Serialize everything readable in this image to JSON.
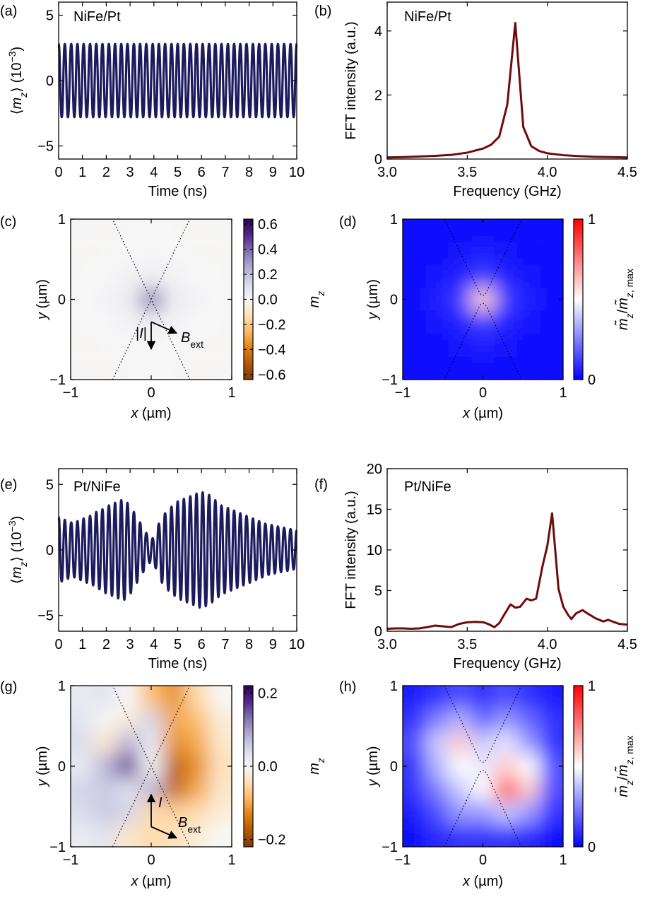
{
  "chart_data": [
    {
      "type": "line",
      "panel_label": "(a)",
      "annotation": "NiFe/Pt",
      "x": [
        0.0,
        0.13,
        0.26,
        0.39,
        0.53,
        0.66,
        0.79,
        0.92,
        1.05,
        1.18,
        1.32,
        1.45,
        1.58,
        1.71,
        1.84,
        1.97,
        2.11,
        2.24,
        2.37,
        2.5,
        2.63,
        2.76,
        2.89,
        3.03,
        3.16,
        3.29,
        3.42,
        3.55,
        3.68,
        3.82,
        3.95,
        4.08,
        4.21,
        4.34,
        4.47,
        4.61,
        4.74,
        4.87,
        5.0,
        5.13,
        5.26,
        5.39,
        5.53,
        5.66,
        5.79,
        5.92,
        6.05,
        6.18,
        6.32,
        6.45,
        6.58,
        6.71,
        6.84,
        6.97,
        7.11,
        7.24,
        7.37,
        7.5,
        7.63,
        7.76,
        7.89,
        8.03,
        8.16,
        8.29,
        8.42,
        8.55,
        8.68,
        8.82,
        8.95,
        9.08,
        9.21,
        9.34,
        9.47,
        9.61,
        9.74,
        9.87,
        10.0
      ],
      "series": [
        {
          "color": "#1b1b5e",
          "values": [
            2.8,
            -2.8,
            2.8,
            -2.8,
            2.8,
            -2.8,
            2.8,
            -2.8,
            2.8,
            -2.8,
            2.8,
            -2.8,
            2.8,
            -2.8,
            2.8,
            -2.8,
            2.8,
            -2.8,
            2.8,
            -2.8,
            2.8,
            -2.8,
            2.8,
            -2.8,
            2.8,
            -2.8,
            2.8,
            -2.8,
            2.8,
            -2.8,
            2.8,
            -2.8,
            2.8,
            -2.8,
            2.8,
            -2.8,
            2.8,
            -2.8,
            2.8,
            -2.8,
            2.8,
            -2.8,
            2.8,
            -2.8,
            2.8,
            -2.8,
            2.8,
            -2.8,
            2.8,
            -2.8,
            2.8,
            -2.8,
            2.8,
            -2.8,
            2.8,
            -2.8,
            2.8,
            -2.8,
            2.8,
            -2.8,
            2.8,
            -2.8,
            2.8,
            -2.8,
            2.8,
            -2.8,
            2.8,
            -2.8,
            2.8,
            -2.8,
            2.8,
            -2.8,
            2.8,
            -2.8,
            2.8,
            -2.8,
            2.8
          ]
        }
      ],
      "xlim": [
        0,
        10
      ],
      "ylim": [
        -6,
        6
      ],
      "xticks": [
        0,
        1,
        2,
        3,
        4,
        5,
        6,
        7,
        8,
        9,
        10
      ],
      "yticks": [
        {
          "value": -5,
          "label": "−5"
        },
        0,
        5
      ],
      "xlabel": "Time (ns)",
      "ylabel": [
        "⟨",
        "m",
        "z",
        "⟩ (10",
        "−3",
        ")"
      ]
    },
    {
      "type": "line",
      "panel_label": "(b)",
      "annotation": "NiFe/Pt",
      "x": [
        3.0,
        3.1,
        3.2,
        3.3,
        3.4,
        3.5,
        3.6,
        3.65,
        3.7,
        3.75,
        3.8,
        3.85,
        3.9,
        3.95,
        4.0,
        4.1,
        4.2,
        4.3,
        4.4,
        4.5
      ],
      "series": [
        {
          "color": "#6e0b0b",
          "values": [
            0.05,
            0.06,
            0.08,
            0.1,
            0.13,
            0.2,
            0.33,
            0.45,
            0.7,
            1.7,
            4.25,
            1.0,
            0.4,
            0.25,
            0.18,
            0.12,
            0.09,
            0.07,
            0.06,
            0.05
          ]
        }
      ],
      "xlim": [
        3,
        4.5
      ],
      "ylim": [
        0,
        4.9
      ],
      "xticks": [
        {
          "value": 3,
          "label": "3.0"
        },
        3.5,
        {
          "value": 4,
          "label": "4.0"
        },
        4.5
      ],
      "yticks": [
        0,
        2,
        4
      ],
      "xlabel": "Frequency (GHz)",
      "ylabel": "FFT intensity (a.u.)"
    },
    {
      "type": "heatmap",
      "panel_label": "(c)",
      "x": [
        -0.86,
        -0.57,
        -0.29,
        0,
        0.29,
        0.57,
        0.86
      ],
      "y": [
        0.86,
        0.57,
        0.29,
        0,
        -0.29,
        -0.57,
        -0.86
      ],
      "z": [
        [
          0.01,
          -0.01,
          0.01,
          0,
          0.01,
          -0.01,
          0.01
        ],
        [
          -0.01,
          0.01,
          0,
          0.01,
          0,
          0.01,
          -0.01
        ],
        [
          0.01,
          0,
          0.02,
          0.03,
          0.02,
          0,
          0.01
        ],
        [
          0,
          0.02,
          0.04,
          0.35,
          0.04,
          0.02,
          0
        ],
        [
          0.01,
          0,
          0.02,
          0.03,
          0.02,
          0,
          0.01
        ],
        [
          -0.01,
          0.01,
          0,
          0.01,
          0,
          0.01,
          -0.01
        ],
        [
          0.01,
          -0.01,
          0.01,
          0,
          0.01,
          -0.01,
          0.01
        ]
      ],
      "xlim": [
        -1,
        1
      ],
      "ylim": [
        -1,
        1
      ],
      "xticks": [
        {
          "value": -1,
          "label": "−1"
        },
        0,
        1
      ],
      "yticks": [
        {
          "value": -1,
          "label": "−1"
        },
        0,
        1
      ],
      "xlabel": [
        "x",
        " (µm)"
      ],
      "ylabel": [
        "y",
        " (µm)"
      ],
      "colormap": "PuOr",
      "clim": [
        -0.64,
        0.64
      ],
      "cticks": [
        {
          "value": -0.6,
          "label": "−0.6"
        },
        {
          "value": -0.4,
          "label": "−0.4"
        },
        {
          "value": -0.2,
          "label": "−0.2"
        },
        {
          "value": 0,
          "label": "0.0"
        },
        0.2,
        0.4,
        0.6
      ],
      "clabel": [
        "m",
        "z"
      ],
      "current_label": [
        "|",
        "I",
        "|"
      ],
      "field_label": [
        "B",
        "ext"
      ]
    },
    {
      "type": "heatmap",
      "panel_label": "(d)",
      "x": [
        -0.86,
        -0.57,
        -0.29,
        0,
        0.29,
        0.57,
        0.86
      ],
      "y": [
        0.86,
        0.57,
        0.29,
        0,
        -0.29,
        -0.57,
        -0.86
      ],
      "z": [
        [
          0.02,
          0.02,
          0.03,
          0.03,
          0.03,
          0.02,
          0.02
        ],
        [
          0.02,
          0.03,
          0.04,
          0.05,
          0.04,
          0.03,
          0.02
        ],
        [
          0.03,
          0.04,
          0.07,
          0.12,
          0.07,
          0.04,
          0.03
        ],
        [
          0.03,
          0.05,
          0.12,
          0.6,
          0.12,
          0.05,
          0.03
        ],
        [
          0.03,
          0.04,
          0.07,
          0.12,
          0.07,
          0.04,
          0.03
        ],
        [
          0.02,
          0.03,
          0.04,
          0.05,
          0.04,
          0.03,
          0.02
        ],
        [
          0.02,
          0.02,
          0.03,
          0.03,
          0.03,
          0.02,
          0.02
        ]
      ],
      "xlim": [
        -1,
        1
      ],
      "ylim": [
        -1,
        1
      ],
      "xticks": [
        {
          "value": -1,
          "label": "−1"
        },
        0,
        1
      ],
      "yticks": [
        {
          "value": -1,
          "label": "−1"
        },
        0,
        1
      ],
      "xlabel": [
        "x",
        " (µm)"
      ],
      "ylabel": [
        "y",
        " (µm)"
      ],
      "colormap": "bwr",
      "clim": [
        0,
        1
      ],
      "cticks": [
        0,
        1
      ],
      "clabel": [
        "m̃",
        "z",
        "/",
        "m̃",
        "z",
        ", max"
      ]
    },
    {
      "type": "line",
      "panel_label": "(e)",
      "annotation": "Pt/NiFe",
      "x": [
        0.0,
        0.13,
        0.26,
        0.39,
        0.53,
        0.66,
        0.79,
        0.92,
        1.05,
        1.18,
        1.32,
        1.45,
        1.58,
        1.71,
        1.84,
        1.97,
        2.11,
        2.24,
        2.37,
        2.5,
        2.63,
        2.76,
        2.89,
        3.03,
        3.16,
        3.29,
        3.42,
        3.55,
        3.68,
        3.82,
        3.95,
        4.08,
        4.21,
        4.34,
        4.47,
        4.61,
        4.74,
        4.87,
        5.0,
        5.13,
        5.26,
        5.39,
        5.53,
        5.66,
        5.79,
        5.92,
        6.05,
        6.18,
        6.32,
        6.45,
        6.58,
        6.71,
        6.84,
        6.97,
        7.11,
        7.24,
        7.37,
        7.5,
        7.63,
        7.76,
        7.89,
        8.03,
        8.16,
        8.29,
        8.42,
        8.55,
        8.68,
        8.82,
        8.95,
        9.08,
        9.21,
        9.34,
        9.47,
        9.61,
        9.74,
        9.87,
        10.0
      ],
      "series": [
        {
          "color": "#1b1b5e",
          "values": [
            2.5,
            -2.4,
            2.3,
            -2.2,
            2.1,
            -2.1,
            2.2,
            -2.3,
            2.4,
            -2.5,
            2.6,
            -2.7,
            2.9,
            -3.0,
            3.1,
            -3.3,
            3.4,
            -3.5,
            3.6,
            -3.7,
            3.8,
            -3.8,
            3.6,
            -3.3,
            2.9,
            -2.5,
            2.1,
            -1.7,
            1.3,
            -1.0,
            0.9,
            -1.4,
            2.0,
            -2.5,
            2.8,
            -3.1,
            3.3,
            -3.5,
            3.7,
            -3.8,
            3.9,
            -4.0,
            4.1,
            -4.2,
            4.3,
            -4.4,
            4.4,
            -4.3,
            4.2,
            -4.0,
            3.8,
            -3.6,
            3.4,
            -3.3,
            3.2,
            -3.1,
            3.0,
            -2.9,
            2.8,
            -2.7,
            2.6,
            -2.5,
            2.4,
            -2.3,
            2.2,
            -2.1,
            2.0,
            -1.9,
            1.9,
            -1.8,
            1.8,
            -1.7,
            1.7,
            -1.6,
            1.6,
            -1.5,
            1.5
          ]
        }
      ],
      "xlim": [
        0,
        10
      ],
      "ylim": [
        -6.2,
        6.2
      ],
      "xticks": [
        0,
        1,
        2,
        3,
        4,
        5,
        6,
        7,
        8,
        9,
        10
      ],
      "yticks": [
        {
          "value": -5,
          "label": "−5"
        },
        0,
        5
      ],
      "xlabel": "Time (ns)",
      "ylabel": [
        "⟨",
        "m",
        "z",
        "⟩ (10",
        "−3",
        ")"
      ]
    },
    {
      "type": "line",
      "panel_label": "(f)",
      "annotation": "Pt/NiFe",
      "x": [
        3.0,
        3.05,
        3.1,
        3.15,
        3.2,
        3.25,
        3.3,
        3.35,
        3.4,
        3.45,
        3.5,
        3.55,
        3.6,
        3.63,
        3.67,
        3.7,
        3.73,
        3.77,
        3.8,
        3.83,
        3.87,
        3.9,
        3.93,
        3.97,
        4.0,
        4.03,
        4.07,
        4.1,
        4.13,
        4.15,
        4.18,
        4.22,
        4.25,
        4.3,
        4.35,
        4.38,
        4.42,
        4.45,
        4.5
      ],
      "series": [
        {
          "color": "#6e0b0b",
          "values": [
            0.3,
            0.35,
            0.35,
            0.3,
            0.35,
            0.5,
            0.7,
            0.6,
            0.5,
            0.9,
            1.1,
            1.15,
            1.1,
            0.9,
            0.5,
            1.0,
            2.0,
            3.3,
            2.9,
            3.0,
            4.0,
            3.8,
            4.0,
            8.0,
            10.5,
            14.5,
            5.2,
            3.0,
            2.0,
            1.5,
            2.2,
            2.6,
            2.2,
            1.6,
            1.2,
            1.4,
            1.1,
            0.9,
            0.8
          ]
        }
      ],
      "xlim": [
        3,
        4.5
      ],
      "ylim": [
        0,
        20
      ],
      "xticks": [
        {
          "value": 3,
          "label": "3.0"
        },
        3.5,
        {
          "value": 4,
          "label": "4.0"
        },
        4.5
      ],
      "yticks": [
        0,
        5,
        10,
        15,
        20
      ],
      "xlabel": "Frequency (GHz)",
      "ylabel": "FFT intensity (a.u.)"
    },
    {
      "type": "heatmap",
      "panel_label": "(g)",
      "x": [
        -0.86,
        -0.57,
        -0.29,
        0,
        0.29,
        0.57,
        0.86
      ],
      "y": [
        0.86,
        0.57,
        0.29,
        0,
        -0.29,
        -0.57,
        -0.86
      ],
      "z": [
        [
          0.02,
          0.03,
          0.0,
          -0.08,
          -0.12,
          -0.05,
          0.0
        ],
        [
          0.03,
          0.0,
          -0.02,
          0.05,
          -0.1,
          -0.08,
          -0.02
        ],
        [
          0.04,
          -0.03,
          0.08,
          0.02,
          -0.12,
          -0.1,
          -0.03
        ],
        [
          0.02,
          0.08,
          0.16,
          0.0,
          -0.17,
          -0.12,
          -0.04
        ],
        [
          0.05,
          0.06,
          0.03,
          0.08,
          -0.16,
          -0.1,
          -0.03
        ],
        [
          0.04,
          0.06,
          0.05,
          -0.05,
          -0.06,
          -0.05,
          -0.02
        ],
        [
          0.02,
          0.03,
          -0.03,
          -0.05,
          -0.04,
          -0.02,
          0.0
        ]
      ],
      "xlim": [
        -1,
        1
      ],
      "ylim": [
        -1,
        1
      ],
      "xticks": [
        {
          "value": -1,
          "label": "−1"
        },
        0,
        1
      ],
      "yticks": [
        {
          "value": -1,
          "label": "−1"
        },
        0,
        1
      ],
      "xlabel": [
        "x",
        " (µm)"
      ],
      "ylabel": [
        "y",
        " (µm)"
      ],
      "colormap": "PuOr",
      "clim": [
        -0.22,
        0.22
      ],
      "cticks": [
        {
          "value": -0.2,
          "label": "−0.2"
        },
        {
          "value": 0,
          "label": "0.0"
        },
        0.2
      ],
      "clabel": [
        "m",
        "z"
      ],
      "current_label": [
        "I"
      ],
      "field_label": [
        "B",
        "ext"
      ]
    },
    {
      "type": "heatmap",
      "panel_label": "(h)",
      "x": [
        -0.86,
        -0.57,
        -0.29,
        0,
        0.29,
        0.57,
        0.86
      ],
      "y": [
        0.86,
        0.57,
        0.29,
        0,
        -0.29,
        -0.57,
        -0.86
      ],
      "z": [
        [
          0.05,
          0.1,
          0.15,
          0.1,
          0.15,
          0.1,
          0.05
        ],
        [
          0.1,
          0.25,
          0.35,
          0.2,
          0.3,
          0.2,
          0.1
        ],
        [
          0.15,
          0.4,
          0.6,
          0.4,
          0.45,
          0.3,
          0.1
        ],
        [
          0.1,
          0.35,
          0.5,
          0.45,
          0.6,
          0.5,
          0.15
        ],
        [
          0.1,
          0.25,
          0.4,
          0.5,
          0.85,
          0.6,
          0.15
        ],
        [
          0.05,
          0.15,
          0.3,
          0.3,
          0.4,
          0.3,
          0.1
        ],
        [
          0.03,
          0.08,
          0.1,
          0.1,
          0.1,
          0.08,
          0.03
        ]
      ],
      "xlim": [
        -1,
        1
      ],
      "ylim": [
        -1,
        1
      ],
      "xticks": [
        {
          "value": -1,
          "label": "−1"
        },
        0,
        1
      ],
      "yticks": [
        {
          "value": -1,
          "label": "−1"
        },
        0,
        1
      ],
      "xlabel": [
        "x",
        " (µm)"
      ],
      "ylabel": [
        "y",
        " (µm)"
      ],
      "colormap": "bwr",
      "clim": [
        0,
        1
      ],
      "cticks": [
        0,
        1
      ],
      "clabel": [
        "m̃",
        "z",
        "/",
        "m̃",
        "z",
        ", max"
      ]
    }
  ]
}
